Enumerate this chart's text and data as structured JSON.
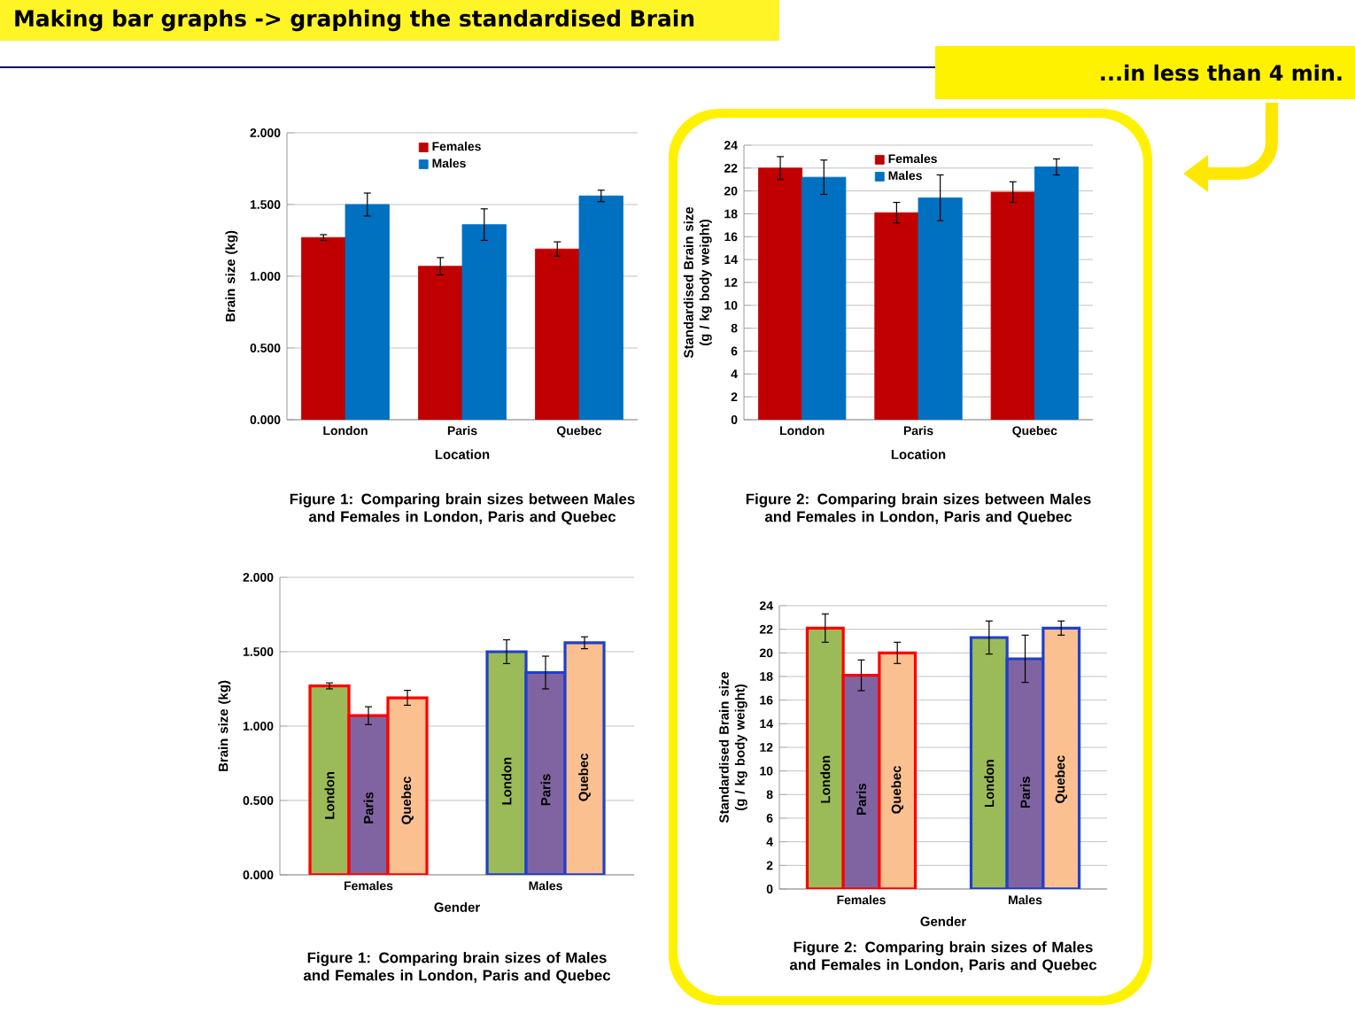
{
  "chart_data": [
    {
      "type": "bar",
      "title": "Figure 1: Comparing brain sizes between Males and Females in London, Paris and Quebec",
      "xlabel": "Location",
      "ylabel": "Brain size (kg)",
      "categories": [
        "London",
        "Paris",
        "Quebec"
      ],
      "series": [
        {
          "name": "Females",
          "color": "#c00000",
          "values": [
            1.27,
            1.07,
            1.19
          ],
          "errors": [
            0.02,
            0.06,
            0.05
          ]
        },
        {
          "name": "Males",
          "color": "#0070c0",
          "values": [
            1.5,
            1.36,
            1.56
          ],
          "errors": [
            0.08,
            0.11,
            0.04
          ]
        }
      ],
      "ylim": [
        0,
        2
      ],
      "yticks": [
        {
          "value": 0,
          "label": "0.000"
        },
        {
          "value": 0.5,
          "label": "0.500"
        },
        {
          "value": 1,
          "label": "1.000"
        },
        {
          "value": 1.5,
          "label": "1.500"
        },
        {
          "value": 2,
          "label": "2.000"
        }
      ],
      "grid": "y",
      "legend": "top",
      "annotations": [
        "Making bar graphs -> graphing the standardised Brain",
        "...in less than 4 min."
      ]
    },
    {
      "type": "bar",
      "title": "Figure 2: Comparing brain sizes between Males and Females in London, Paris and Quebec",
      "xlabel": "Location",
      "ylabel": "Standardised Brain size (g / kg body weight)",
      "categories": [
        "London",
        "Paris",
        "Quebec"
      ],
      "series": [
        {
          "name": "Females",
          "color": "#c00000",
          "values": [
            22.0,
            18.1,
            19.9
          ],
          "errors": [
            1.0,
            0.9,
            0.9
          ]
        },
        {
          "name": "Males",
          "color": "#0070c0",
          "values": [
            21.2,
            19.4,
            22.1
          ],
          "errors": [
            1.5,
            2.0,
            0.7
          ]
        }
      ],
      "ylim": [
        0,
        24
      ],
      "yticks": [
        0,
        2,
        4,
        6,
        8,
        10,
        12,
        14,
        16,
        18,
        20,
        22,
        24
      ],
      "grid": "y",
      "legend": "top"
    },
    {
      "type": "bar",
      "title": "Figure 1: Comparing brain sizes of Males and Females in London, Paris and Quebec",
      "xlabel": "Gender",
      "ylabel": "Brain size (kg)",
      "categories": [
        "Females",
        "Males"
      ],
      "series": [
        {
          "name": "London",
          "color": "#9bbb59",
          "values": [
            1.27,
            1.5
          ],
          "errors": [
            0.02,
            0.08
          ]
        },
        {
          "name": "Paris",
          "color": "#8064a2",
          "values": [
            1.07,
            1.36
          ],
          "errors": [
            0.06,
            0.11
          ]
        },
        {
          "name": "Quebec",
          "color": "#fac090",
          "values": [
            1.19,
            1.56
          ],
          "errors": [
            0.05,
            0.04
          ]
        }
      ],
      "ylim": [
        0,
        2
      ],
      "yticks": [
        {
          "value": 0,
          "label": "0.000"
        },
        {
          "value": 0.5,
          "label": "0.500"
        },
        {
          "value": 1,
          "label": "1.000"
        },
        {
          "value": 1.5,
          "label": "1.500"
        },
        {
          "value": 2,
          "label": "2.000"
        }
      ],
      "grid": "y"
    },
    {
      "type": "bar",
      "title": "Figure 2: Comparing brain sizes of Males and Females in London, Paris and Quebec",
      "xlabel": "Gender",
      "ylabel": "Standardised Brain size (g / kg body weight)",
      "categories": [
        "Females",
        "Males"
      ],
      "series": [
        {
          "name": "London",
          "color": "#9bbb59",
          "values": [
            22.1,
            21.3
          ],
          "errors": [
            1.2,
            1.4
          ]
        },
        {
          "name": "Paris",
          "color": "#8064a2",
          "values": [
            18.1,
            19.5
          ],
          "errors": [
            1.3,
            2.0
          ]
        },
        {
          "name": "Quebec",
          "color": "#fac090",
          "values": [
            20.0,
            22.1
          ],
          "errors": [
            0.9,
            0.6
          ]
        }
      ],
      "ylim": [
        0,
        24
      ],
      "yticks": [
        0,
        2,
        4,
        6,
        8,
        10,
        12,
        14,
        16,
        18,
        20,
        22,
        24
      ],
      "grid": "y"
    }
  ]
}
